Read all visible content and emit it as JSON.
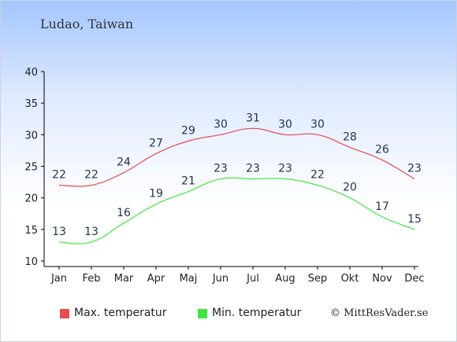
{
  "location": "Ludao, Taiwan",
  "credit": "© MittResVader.se",
  "colors": {
    "max": "#e84c4c",
    "min": "#3ee83e",
    "axis": "#000000"
  },
  "chart_data": {
    "type": "line",
    "categories": [
      "Jan",
      "Feb",
      "Mar",
      "Apr",
      "Maj",
      "Jun",
      "Jul",
      "Aug",
      "Sep",
      "Okt",
      "Nov",
      "Dec"
    ],
    "ylim": [
      10,
      40
    ],
    "yticks": [
      10,
      15,
      20,
      25,
      30,
      35,
      40
    ],
    "grid": false,
    "legend_position": "bottom",
    "series": [
      {
        "name": "Max. temperatur",
        "color": "#e84c4c",
        "values": [
          22,
          22,
          24,
          27,
          29,
          30,
          31,
          30,
          30,
          28,
          26,
          23
        ]
      },
      {
        "name": "Min. temperatur",
        "color": "#3ee83e",
        "values": [
          13,
          13,
          16,
          19,
          21,
          23,
          23,
          23,
          22,
          20,
          17,
          15
        ]
      }
    ]
  }
}
